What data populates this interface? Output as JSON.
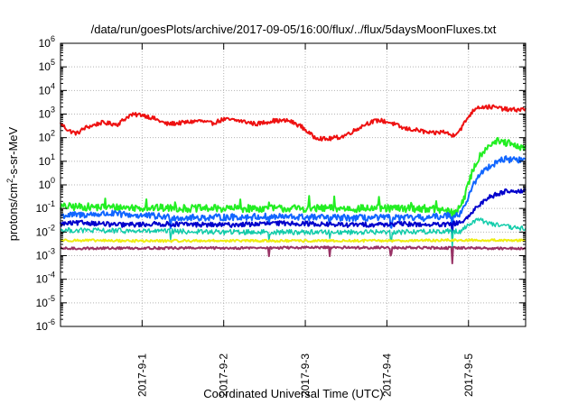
{
  "chart_data": {
    "type": "line",
    "title": "/data/run/goesPlots/archive/2017-09-05/16:00/flux/../flux/5daysMoonFluxes.txt",
    "xlabel": "Coordinated Universal Time (UTC)",
    "ylabel_parts": [
      "protons/cm",
      "2",
      "-s-sr-MeV"
    ],
    "y_scale": "log",
    "ylim_exponent": [
      -6,
      6
    ],
    "y_tick_base": "10",
    "y_tick_exponents": [
      "-6",
      "-5",
      "-4",
      "-3",
      "-2",
      "-1",
      "0",
      "1",
      "2",
      "3",
      "4",
      "5",
      "6"
    ],
    "xlim_days": [
      0.0,
      5.7
    ],
    "x_ticks": [
      {
        "x": 1.0,
        "label": "2017-9-1"
      },
      {
        "x": 2.0,
        "label": "2017-9-2"
      },
      {
        "x": 3.0,
        "label": "2017-9-3"
      },
      {
        "x": 4.0,
        "label": "2017-9-4"
      },
      {
        "x": 5.0,
        "label": "2017-9-5"
      }
    ],
    "grid": true,
    "legend": "none",
    "series": [
      {
        "color": "#ee1111",
        "width": 2,
        "noise": 0.09,
        "keypoints": [
          [
            0.0,
            400
          ],
          [
            0.1,
            200
          ],
          [
            0.2,
            150
          ],
          [
            0.3,
            260
          ],
          [
            0.5,
            430
          ],
          [
            0.7,
            370
          ],
          [
            0.85,
            900
          ],
          [
            1.0,
            950
          ],
          [
            1.15,
            640
          ],
          [
            1.3,
            380
          ],
          [
            1.5,
            430
          ],
          [
            1.7,
            520
          ],
          [
            1.85,
            400
          ],
          [
            2.0,
            600
          ],
          [
            2.2,
            520
          ],
          [
            2.4,
            380
          ],
          [
            2.6,
            520
          ],
          [
            2.8,
            520
          ],
          [
            2.95,
            300
          ],
          [
            3.1,
            110
          ],
          [
            3.25,
            85
          ],
          [
            3.45,
            110
          ],
          [
            3.6,
            200
          ],
          [
            3.75,
            400
          ],
          [
            3.9,
            550
          ],
          [
            4.05,
            430
          ],
          [
            4.2,
            250
          ],
          [
            4.4,
            200
          ],
          [
            4.55,
            150
          ],
          [
            4.7,
            180
          ],
          [
            4.8,
            120
          ],
          [
            4.9,
            220
          ],
          [
            5.0,
            800
          ],
          [
            5.1,
            2000
          ],
          [
            5.3,
            2000
          ],
          [
            5.5,
            1500
          ],
          [
            5.7,
            1600
          ]
        ]
      },
      {
        "color": "#22ee22",
        "width": 2,
        "noise": 0.16,
        "spikes": [
          [
            0.55,
            2.6
          ],
          [
            1.05,
            2.8
          ],
          [
            1.4,
            2.5
          ],
          [
            2.2,
            2.4
          ],
          [
            2.55,
            2.6
          ],
          [
            3.05,
            2.4
          ],
          [
            3.35,
            2.6
          ],
          [
            3.9,
            2.3
          ],
          [
            4.3,
            2.5
          ],
          [
            4.6,
            2.4
          ]
        ],
        "dips": [
          [
            4.8,
            0.35
          ]
        ],
        "keypoints": [
          [
            0.0,
            0.12
          ],
          [
            0.8,
            0.11
          ],
          [
            1.6,
            0.1
          ],
          [
            2.6,
            0.1
          ],
          [
            3.6,
            0.1
          ],
          [
            4.5,
            0.1
          ],
          [
            4.85,
            0.07
          ],
          [
            4.95,
            0.3
          ],
          [
            5.05,
            4
          ],
          [
            5.15,
            20
          ],
          [
            5.25,
            50
          ],
          [
            5.35,
            70
          ],
          [
            5.5,
            55
          ],
          [
            5.6,
            38
          ],
          [
            5.7,
            40
          ]
        ]
      },
      {
        "color": "#1166ff",
        "width": 2,
        "noise": 0.14,
        "dips": [
          [
            1.35,
            0.45
          ],
          [
            2.55,
            0.4
          ],
          [
            3.3,
            0.4
          ],
          [
            4.05,
            0.45
          ],
          [
            4.8,
            0.25
          ]
        ],
        "keypoints": [
          [
            0.0,
            0.05
          ],
          [
            0.6,
            0.06
          ],
          [
            1.5,
            0.04
          ],
          [
            2.5,
            0.045
          ],
          [
            3.5,
            0.04
          ],
          [
            4.5,
            0.04
          ],
          [
            4.9,
            0.06
          ],
          [
            5.0,
            0.3
          ],
          [
            5.1,
            2
          ],
          [
            5.25,
            6
          ],
          [
            5.4,
            12
          ],
          [
            5.55,
            12
          ],
          [
            5.7,
            11
          ]
        ]
      },
      {
        "color": "#0000cc",
        "width": 2,
        "noise": 0.1,
        "dips": [
          [
            4.8,
            0.4
          ]
        ],
        "keypoints": [
          [
            0.0,
            0.022
          ],
          [
            0.3,
            0.025
          ],
          [
            0.7,
            0.02
          ],
          [
            1.2,
            0.022
          ],
          [
            2.0,
            0.02
          ],
          [
            2.8,
            0.024
          ],
          [
            3.5,
            0.02
          ],
          [
            4.2,
            0.022
          ],
          [
            4.7,
            0.02
          ],
          [
            4.9,
            0.025
          ],
          [
            5.0,
            0.04
          ],
          [
            5.1,
            0.12
          ],
          [
            5.25,
            0.3
          ],
          [
            5.45,
            0.55
          ],
          [
            5.7,
            0.55
          ]
        ]
      },
      {
        "color": "#11ccaa",
        "width": 1.5,
        "noise": 0.11,
        "dips": [
          [
            1.35,
            0.5
          ],
          [
            2.55,
            0.45
          ],
          [
            3.3,
            0.45
          ],
          [
            4.05,
            0.5
          ],
          [
            4.8,
            0.25
          ]
        ],
        "keypoints": [
          [
            0.0,
            0.012
          ],
          [
            1.0,
            0.011
          ],
          [
            2.0,
            0.01
          ],
          [
            3.0,
            0.01
          ],
          [
            4.0,
            0.01
          ],
          [
            4.9,
            0.011
          ],
          [
            5.0,
            0.02
          ],
          [
            5.1,
            0.035
          ],
          [
            5.2,
            0.028
          ],
          [
            5.4,
            0.018
          ],
          [
            5.55,
            0.015
          ],
          [
            5.7,
            0.014
          ]
        ]
      },
      {
        "color": "#eeee11",
        "width": 2,
        "noise": 0.05,
        "keypoints": [
          [
            0.0,
            0.0045
          ],
          [
            1.0,
            0.0042
          ],
          [
            2.0,
            0.0043
          ],
          [
            3.0,
            0.0042
          ],
          [
            4.0,
            0.0043
          ],
          [
            4.8,
            0.0045
          ],
          [
            5.0,
            0.0045
          ],
          [
            5.7,
            0.0045
          ]
        ]
      },
      {
        "color": "#993366",
        "width": 2,
        "noise": 0.05,
        "dips": [
          [
            2.55,
            0.4
          ],
          [
            3.3,
            0.4
          ],
          [
            4.05,
            0.5
          ],
          [
            4.8,
            0.22
          ]
        ],
        "keypoints": [
          [
            0.0,
            0.002
          ],
          [
            1.0,
            0.0021
          ],
          [
            2.0,
            0.0021
          ],
          [
            3.0,
            0.0022
          ],
          [
            4.0,
            0.0022
          ],
          [
            5.0,
            0.0021
          ],
          [
            5.7,
            0.002
          ]
        ]
      }
    ]
  }
}
